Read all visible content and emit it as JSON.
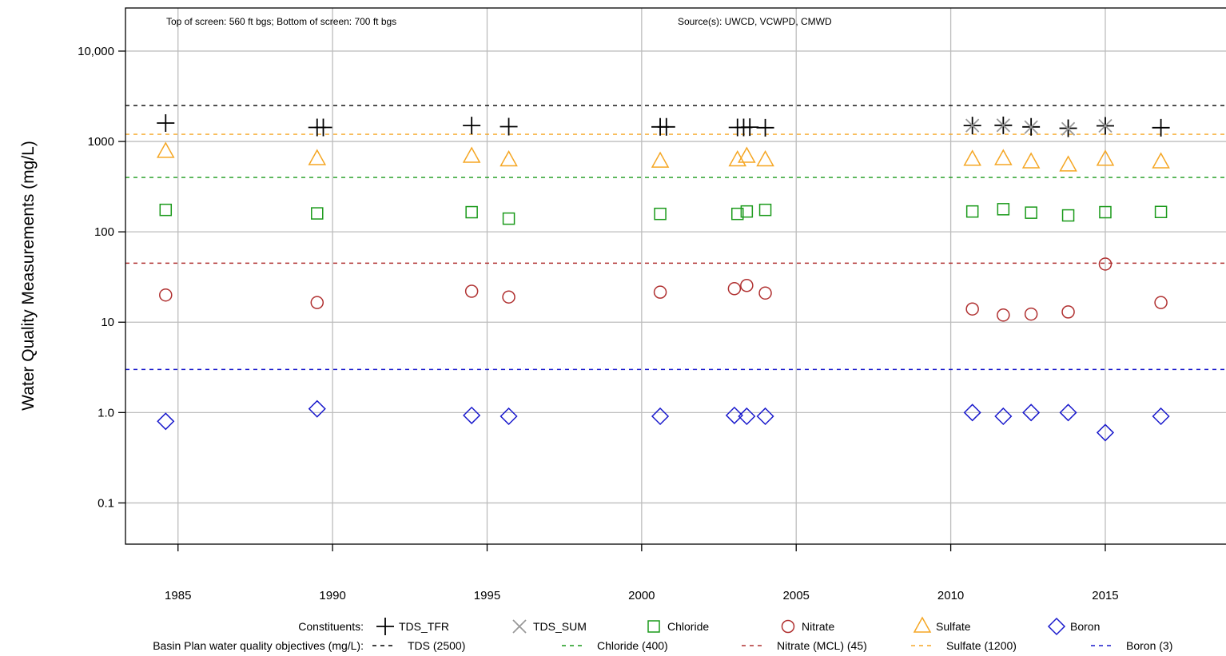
{
  "chart_data": {
    "type": "scatter",
    "ylabel": "Water Quality Measurements (mg/L)",
    "xlabel": "",
    "y_scale": "log",
    "ylim": [
      0.035,
      30000
    ],
    "xlim": [
      1983.3,
      2019.5
    ],
    "y_ticks": [
      {
        "value": 0.1,
        "label": "0.1"
      },
      {
        "value": 1,
        "label": "1.0"
      },
      {
        "value": 10,
        "label": "10"
      },
      {
        "value": 100,
        "label": "100"
      },
      {
        "value": 1000,
        "label": "1000"
      },
      {
        "value": 10000,
        "label": "10,000"
      }
    ],
    "x_ticks": [
      {
        "value": 1985,
        "label": "1985"
      },
      {
        "value": 1990,
        "label": "1990"
      },
      {
        "value": 1995,
        "label": "1995"
      },
      {
        "value": 2000,
        "label": "2000"
      },
      {
        "value": 2005,
        "label": "2005"
      },
      {
        "value": 2010,
        "label": "2010"
      },
      {
        "value": 2015,
        "label": "2015"
      }
    ],
    "grid": true,
    "annotations": {
      "screen": "Top of screen: 560 ft bgs; Bottom of screen: 700 ft bgs",
      "source": "Source(s): UWCD, VCWPD, CMWD"
    },
    "series": [
      {
        "name": "TDS_TFR",
        "marker": "plus",
        "color": "#000000",
        "points": [
          [
            1984.6,
            1600
          ],
          [
            1989.5,
            1430
          ],
          [
            1989.7,
            1430
          ],
          [
            1994.5,
            1500
          ],
          [
            1995.7,
            1460
          ],
          [
            2000.6,
            1450
          ],
          [
            2000.8,
            1450
          ],
          [
            2003.1,
            1430
          ],
          [
            2003.3,
            1430
          ],
          [
            2003.5,
            1440
          ],
          [
            2004.0,
            1420
          ],
          [
            2010.7,
            1500
          ],
          [
            2011.7,
            1510
          ],
          [
            2012.6,
            1450
          ],
          [
            2013.8,
            1400
          ],
          [
            2015.0,
            1490
          ],
          [
            2016.8,
            1420
          ]
        ]
      },
      {
        "name": "TDS_SUM",
        "marker": "x",
        "color": "#999999",
        "points": [
          [
            2010.7,
            1500
          ],
          [
            2011.7,
            1510
          ],
          [
            2012.6,
            1440
          ],
          [
            2013.8,
            1380
          ],
          [
            2015.0,
            1490
          ]
        ]
      },
      {
        "name": "Chloride",
        "marker": "square",
        "color": "#1a9a1a",
        "points": [
          [
            1984.6,
            175
          ],
          [
            1989.5,
            160
          ],
          [
            1994.5,
            165
          ],
          [
            1995.7,
            140
          ],
          [
            2000.6,
            158
          ],
          [
            2003.1,
            158
          ],
          [
            2003.4,
            168
          ],
          [
            2004.0,
            175
          ],
          [
            2010.7,
            168
          ],
          [
            2011.7,
            178
          ],
          [
            2012.6,
            163
          ],
          [
            2013.8,
            152
          ],
          [
            2015.0,
            165
          ],
          [
            2016.8,
            166
          ]
        ]
      },
      {
        "name": "Nitrate",
        "marker": "circle",
        "color": "#b03030",
        "points": [
          [
            1984.6,
            20
          ],
          [
            1989.5,
            16.5
          ],
          [
            1994.5,
            22
          ],
          [
            1995.7,
            19
          ],
          [
            2000.6,
            21.5
          ],
          [
            2003.0,
            23.5
          ],
          [
            2003.4,
            25.5
          ],
          [
            2004.0,
            21
          ],
          [
            2010.7,
            14
          ],
          [
            2011.7,
            12
          ],
          [
            2012.6,
            12.3
          ],
          [
            2013.8,
            13
          ],
          [
            2015.0,
            44
          ],
          [
            2016.8,
            16.5
          ]
        ]
      },
      {
        "name": "Sulfate",
        "marker": "triangle",
        "color": "#f5a623",
        "points": [
          [
            1984.6,
            770
          ],
          [
            1989.5,
            640
          ],
          [
            1994.5,
            680
          ],
          [
            1995.7,
            620
          ],
          [
            2000.6,
            600
          ],
          [
            2003.1,
            620
          ],
          [
            2003.4,
            680
          ],
          [
            2004.0,
            620
          ],
          [
            2010.7,
            630
          ],
          [
            2011.7,
            640
          ],
          [
            2012.6,
            590
          ],
          [
            2013.8,
            545
          ],
          [
            2015.0,
            630
          ],
          [
            2016.8,
            590
          ]
        ]
      },
      {
        "name": "Boron",
        "marker": "diamond",
        "color": "#1a1acc",
        "points": [
          [
            1984.6,
            0.8
          ],
          [
            1989.5,
            1.1
          ],
          [
            1994.5,
            0.93
          ],
          [
            1995.7,
            0.91
          ],
          [
            2000.6,
            0.91
          ],
          [
            2003.0,
            0.93
          ],
          [
            2003.4,
            0.91
          ],
          [
            2004.0,
            0.91
          ],
          [
            2010.7,
            1.0
          ],
          [
            2011.7,
            0.91
          ],
          [
            2012.6,
            1.0
          ],
          [
            2013.8,
            1.0
          ],
          [
            2015.0,
            0.6
          ],
          [
            2016.8,
            0.91
          ]
        ]
      }
    ],
    "objectives": [
      {
        "label": "TDS (2500)",
        "value": 2500,
        "color": "#000000"
      },
      {
        "label": "Chloride (400)",
        "value": 400,
        "color": "#1a9a1a"
      },
      {
        "label": "Nitrate (MCL) (45)",
        "value": 45,
        "color": "#b03030"
      },
      {
        "label": "Sulfate (1200)",
        "value": 1200,
        "color": "#f5a623"
      },
      {
        "label": "Boron (3)",
        "value": 3,
        "color": "#1a1acc"
      }
    ],
    "legend": {
      "constituents_title": "Constituents:",
      "objectives_title": "Basin Plan water quality objectives (mg/L):",
      "placement": "bottom"
    }
  }
}
